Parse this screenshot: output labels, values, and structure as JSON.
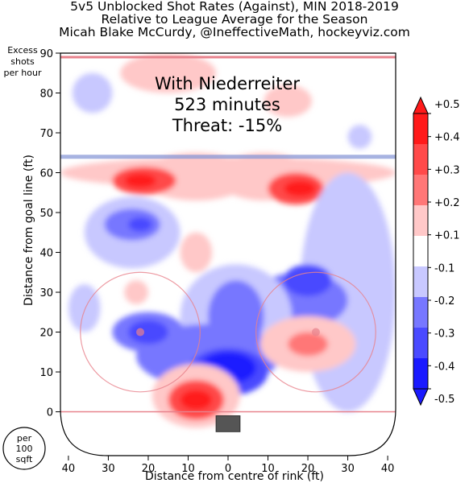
{
  "header": {
    "title_line1": "5v5 Unblocked Shot Rates (Against), MIN 2018-2019",
    "title_line2": "Relative to League Average for the Season",
    "title_line3": "Micah Blake McCurdy, @IneffectiveMath, hockeyviz.com"
  },
  "annotation": {
    "line1": "With Niederreiter",
    "line2": "523 minutes",
    "line3": "Threat: -15%"
  },
  "excess_label": [
    "Excess",
    "shots",
    "per hour"
  ],
  "per_area_label": [
    "per",
    "100",
    "sqft"
  ],
  "colors": {
    "strong_red": "#ff1a1a",
    "mid_red": "#ff7777",
    "light_red": "#ffc8c8",
    "neutral": "#ffffff",
    "light_blue": "#c8c8ff",
    "mid_blue": "#7777ff",
    "strong_blue": "#1a1aff",
    "rink_line_red": "#e8828c",
    "blue_line": "#8a9ad8",
    "net": "#555555"
  },
  "chart_data": {
    "type": "heatmap",
    "xlabel": "Distance from centre of rink (ft)",
    "ylabel": "Distance from goal line (ft)",
    "xlim": [
      42,
      -42
    ],
    "ylim": [
      -11,
      90
    ],
    "x_ticks": [
      40,
      30,
      20,
      10,
      0,
      10,
      20,
      30,
      40
    ],
    "y_ticks": [
      0,
      10,
      20,
      30,
      40,
      50,
      60,
      70,
      80,
      90
    ],
    "colorbar": {
      "ticks": [
        "+0.5",
        "+0.4",
        "+0.3",
        "+0.2",
        "+0.1",
        "-0.1",
        "-0.2",
        "-0.3",
        "-0.4",
        "-0.5"
      ],
      "levels": [
        0.5,
        0.4,
        0.3,
        0.2,
        0.1,
        -0.1,
        -0.2,
        -0.3,
        -0.4,
        -0.5
      ],
      "extend": "both"
    },
    "regions": [
      {
        "x": 8,
        "y": 59,
        "rx": 14,
        "ry": 6,
        "value": 0.18
      },
      {
        "x": -9,
        "y": 59,
        "rx": 12,
        "ry": 6,
        "value": 0.18
      },
      {
        "x": 0,
        "y": 60,
        "rx": 42,
        "ry": 4,
        "value": 0.11
      },
      {
        "x": 21,
        "y": 58,
        "rx": 8,
        "ry": 3.5,
        "value": 0.3
      },
      {
        "x": 22,
        "y": 58,
        "rx": 4,
        "ry": 1.8,
        "value": 0.42
      },
      {
        "x": -17,
        "y": 56,
        "rx": 7,
        "ry": 4,
        "value": 0.3
      },
      {
        "x": -18,
        "y": 56,
        "rx": 4,
        "ry": 2,
        "value": 0.42
      },
      {
        "x": 15,
        "y": 85,
        "rx": 12,
        "ry": 5,
        "value": 0.12
      },
      {
        "x": -15,
        "y": 78,
        "rx": 6,
        "ry": 4,
        "value": 0.11
      },
      {
        "x": 24,
        "y": 45,
        "rx": 12,
        "ry": 9,
        "value": -0.13
      },
      {
        "x": 24,
        "y": 47,
        "rx": 7,
        "ry": 4,
        "value": -0.22
      },
      {
        "x": 22,
        "y": 47,
        "rx": 3,
        "ry": 1.8,
        "value": -0.33
      },
      {
        "x": 34,
        "y": 80,
        "rx": 5,
        "ry": 5,
        "value": -0.12
      },
      {
        "x": -33,
        "y": 69,
        "rx": 3,
        "ry": 3,
        "value": -0.12
      },
      {
        "x": -30,
        "y": 30,
        "rx": 12,
        "ry": 30,
        "value": -0.13
      },
      {
        "x": -18,
        "y": 28,
        "rx": 12,
        "ry": 7,
        "value": -0.24
      },
      {
        "x": -20,
        "y": 33,
        "rx": 6,
        "ry": 4,
        "value": -0.32
      },
      {
        "x": -2,
        "y": 24,
        "rx": 14,
        "ry": 13,
        "value": -0.14
      },
      {
        "x": -2,
        "y": 24,
        "rx": 7,
        "ry": 9,
        "value": -0.24
      },
      {
        "x": 5,
        "y": 14,
        "rx": 18,
        "ry": 8,
        "value": -0.2
      },
      {
        "x": 0,
        "y": 10,
        "rx": 10,
        "ry": 6,
        "value": -0.31
      },
      {
        "x": 0,
        "y": 11,
        "rx": 7,
        "ry": 4,
        "value": -0.43
      },
      {
        "x": 20,
        "y": 20,
        "rx": 9,
        "ry": 5,
        "value": -0.25
      },
      {
        "x": 20,
        "y": 20,
        "rx": 5,
        "ry": 3,
        "value": -0.33
      },
      {
        "x": -20,
        "y": 17,
        "rx": 12,
        "ry": 7,
        "value": 0.12
      },
      {
        "x": -20,
        "y": 17,
        "rx": 5,
        "ry": 3,
        "value": 0.22
      },
      {
        "x": 23,
        "y": 30,
        "rx": 3,
        "ry": 3,
        "value": 0.12
      },
      {
        "x": 8,
        "y": 40,
        "rx": 4,
        "ry": 5,
        "value": 0.12
      },
      {
        "x": 8,
        "y": 4,
        "rx": 11,
        "ry": 8,
        "value": 0.16
      },
      {
        "x": 8,
        "y": 3,
        "rx": 7,
        "ry": 5,
        "value": 0.3
      },
      {
        "x": 8,
        "y": 3,
        "rx": 4,
        "ry": 2.5,
        "value": 0.45
      },
      {
        "x": 36,
        "y": 26,
        "rx": 4,
        "ry": 6,
        "value": -0.1
      }
    ]
  }
}
